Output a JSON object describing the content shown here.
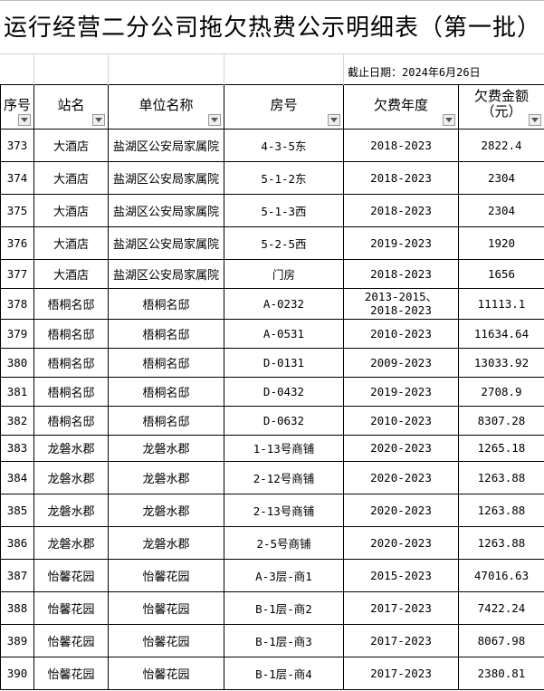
{
  "title": "运行经营二分公司拖欠热费公示明细表（第一批）",
  "date_label": "截止日期：2024年6月26日",
  "headers": [
    "序号",
    "站名",
    "单位名称",
    "房号",
    "欠费年度",
    "欠费金额（元）"
  ],
  "rows": [
    [
      "373",
      "大酒店",
      "盐湖区公安局家属院",
      "4-3-5东",
      "2018-2023",
      "2822.4"
    ],
    [
      "374",
      "大酒店",
      "盐湖区公安局家属院",
      "5-1-2东",
      "2018-2023",
      "2304"
    ],
    [
      "375",
      "大酒店",
      "盐湖区公安局家属院",
      "5-1-3西",
      "2018-2023",
      "2304"
    ],
    [
      "376",
      "大酒店",
      "盐湖区公安局家属院",
      "5-2-5西",
      "2019-2023",
      "1920"
    ],
    [
      "377",
      "大酒店",
      "盐湖区公安局家属院",
      "门房",
      "2018-2023",
      "1656"
    ],
    [
      "378",
      "梧桐名邸",
      "梧桐名邸",
      "A-0232",
      "2013-2015、2018-2023",
      "11113.1"
    ],
    [
      "379",
      "梧桐名邸",
      "梧桐名邸",
      "A-0531",
      "2010-2023",
      "11634.64"
    ],
    [
      "380",
      "梧桐名邸",
      "梧桐名邸",
      "D-0131",
      "2009-2023",
      "13033.92"
    ],
    [
      "381",
      "梧桐名邸",
      "梧桐名邸",
      "D-0432",
      "2019-2023",
      "2708.9"
    ],
    [
      "382",
      "梧桐名邸",
      "梧桐名邸",
      "D-0632",
      "2010-2023",
      "8307.28"
    ],
    [
      "383",
      "龙磐水郡",
      "龙磐水郡",
      "1-13号商铺",
      "2020-2023",
      "1265.18"
    ],
    [
      "384",
      "龙磐水郡",
      "龙磐水郡",
      "2-12号商铺",
      "2020-2023",
      "1263.88"
    ],
    [
      "385",
      "龙磐水郡",
      "龙磐水郡",
      "2-13号商铺",
      "2020-2023",
      "1263.88"
    ],
    [
      "386",
      "龙磐水郡",
      "龙磐水郡",
      "2-5号商铺",
      "2020-2023",
      "1263.88"
    ],
    [
      "387",
      "怡馨花园",
      "怡馨花园",
      "A-3层-商1",
      "2015-2023",
      "47016.63"
    ],
    [
      "388",
      "怡馨花园",
      "怡馨花园",
      "B-1层-商2",
      "2017-2023",
      "7422.24"
    ],
    [
      "389",
      "怡馨花园",
      "怡馨花园",
      "B-1层-商3",
      "2017-2023",
      "8067.98"
    ],
    [
      "390",
      "怡馨花园",
      "怡馨花园",
      "B-1层-商4",
      "2017-2023",
      "2380.81"
    ]
  ]
}
